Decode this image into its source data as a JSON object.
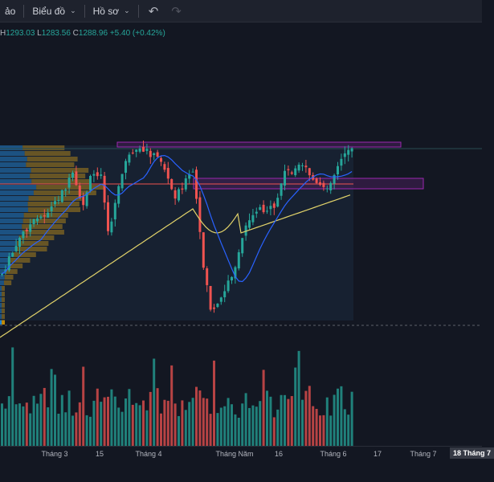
{
  "toolbar": {
    "item1": "ảo",
    "item2": "Biểu đồ",
    "item3": "Hồ sơ"
  },
  "legend": {
    "h_label": "H",
    "h_value": "1293.03",
    "l_label": "L",
    "l_value": "1283.56",
    "c_label": "C",
    "c_value": "1288.96",
    "change": "+5.40 (+0.42%)"
  },
  "colors": {
    "up": "#26a69a",
    "down": "#ef5350",
    "ma_fast": "#2962ff",
    "ma_slow": "#e2d36a",
    "zone": "#9c27b0"
  },
  "xaxis": {
    "t3": "Tháng 3",
    "d15": "15",
    "t4": "Tháng 4",
    "t5": "Tháng Năm",
    "d16": "16",
    "t6": "Tháng 6",
    "d17": "17",
    "t7": "Tháng 7",
    "current": "18 Tháng 7"
  }
}
